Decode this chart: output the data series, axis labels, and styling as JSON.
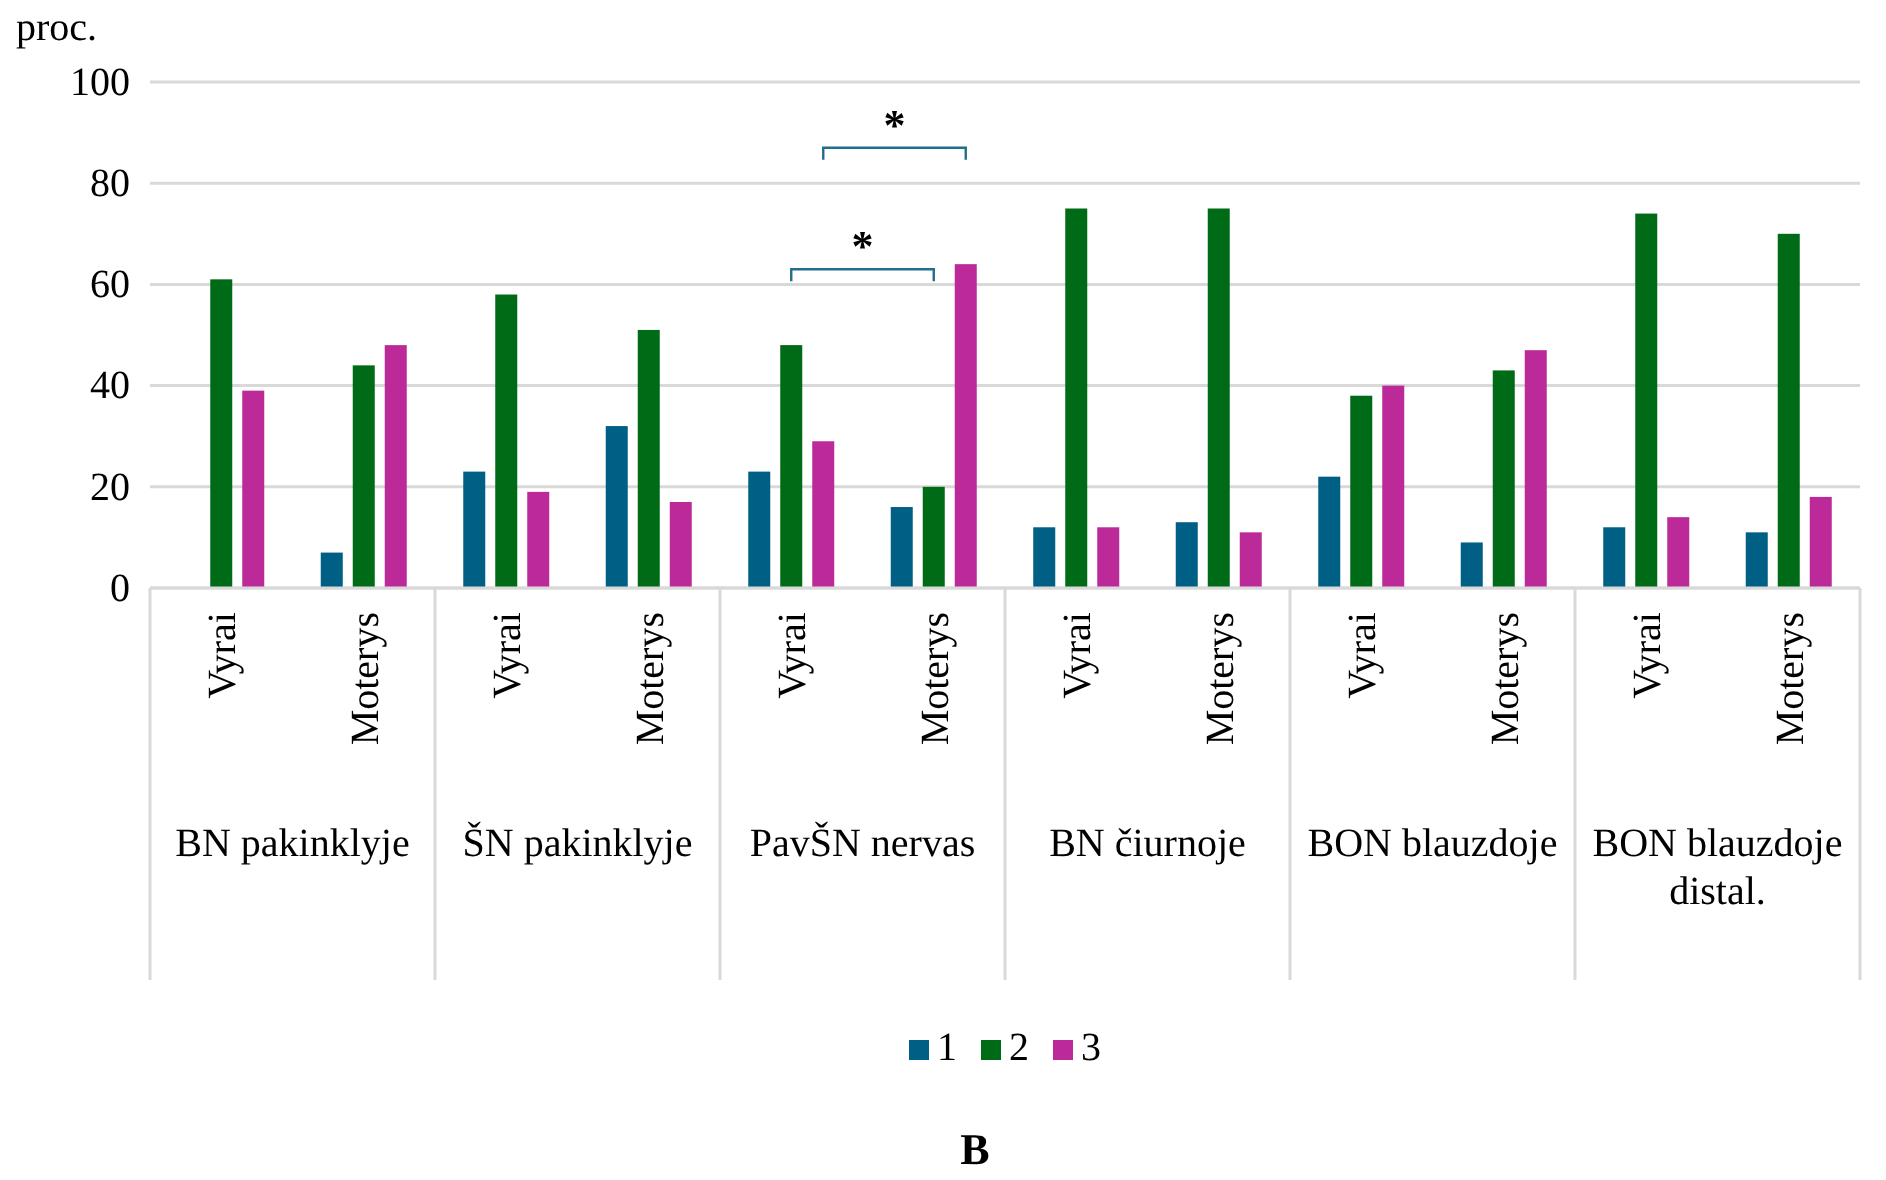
{
  "chart_data": {
    "type": "bar",
    "title": "B",
    "ylabel": "proc.",
    "categories": [
      "Vyrai",
      "Moterys",
      "Vyrai",
      "Moterys",
      "Vyrai",
      "Moterys",
      "Vyrai",
      "Moterys",
      "Vyrai",
      "Moterys",
      "Vyrai",
      "Moterys"
    ],
    "series": [
      {
        "name": "1",
        "color": "#005f84",
        "values": [
          0,
          7,
          23,
          32,
          23,
          16,
          12,
          13,
          22,
          9,
          12,
          11
        ]
      },
      {
        "name": "2",
        "color": "#006b16",
        "values": [
          61,
          44,
          58,
          51,
          48,
          20,
          75,
          75,
          38,
          43,
          74,
          70
        ]
      },
      {
        "name": "3",
        "color": "#bb2a98",
        "values": [
          39,
          48,
          19,
          17,
          29,
          64,
          12,
          11,
          40,
          47,
          14,
          18
        ]
      }
    ],
    "annotations": [
      "BN pakinklyje",
      "ŠN pakinklyje",
      "PavŠN nervas",
      "BN čiurnoje",
      "BON blauzdoje",
      "BON blauzdoje distal.",
      "*",
      "*"
    ],
    "ylim": [
      0,
      100
    ],
    "yticks": [
      0,
      20,
      40,
      60,
      80,
      100
    ],
    "grid": "y",
    "legend": "bottom"
  }
}
